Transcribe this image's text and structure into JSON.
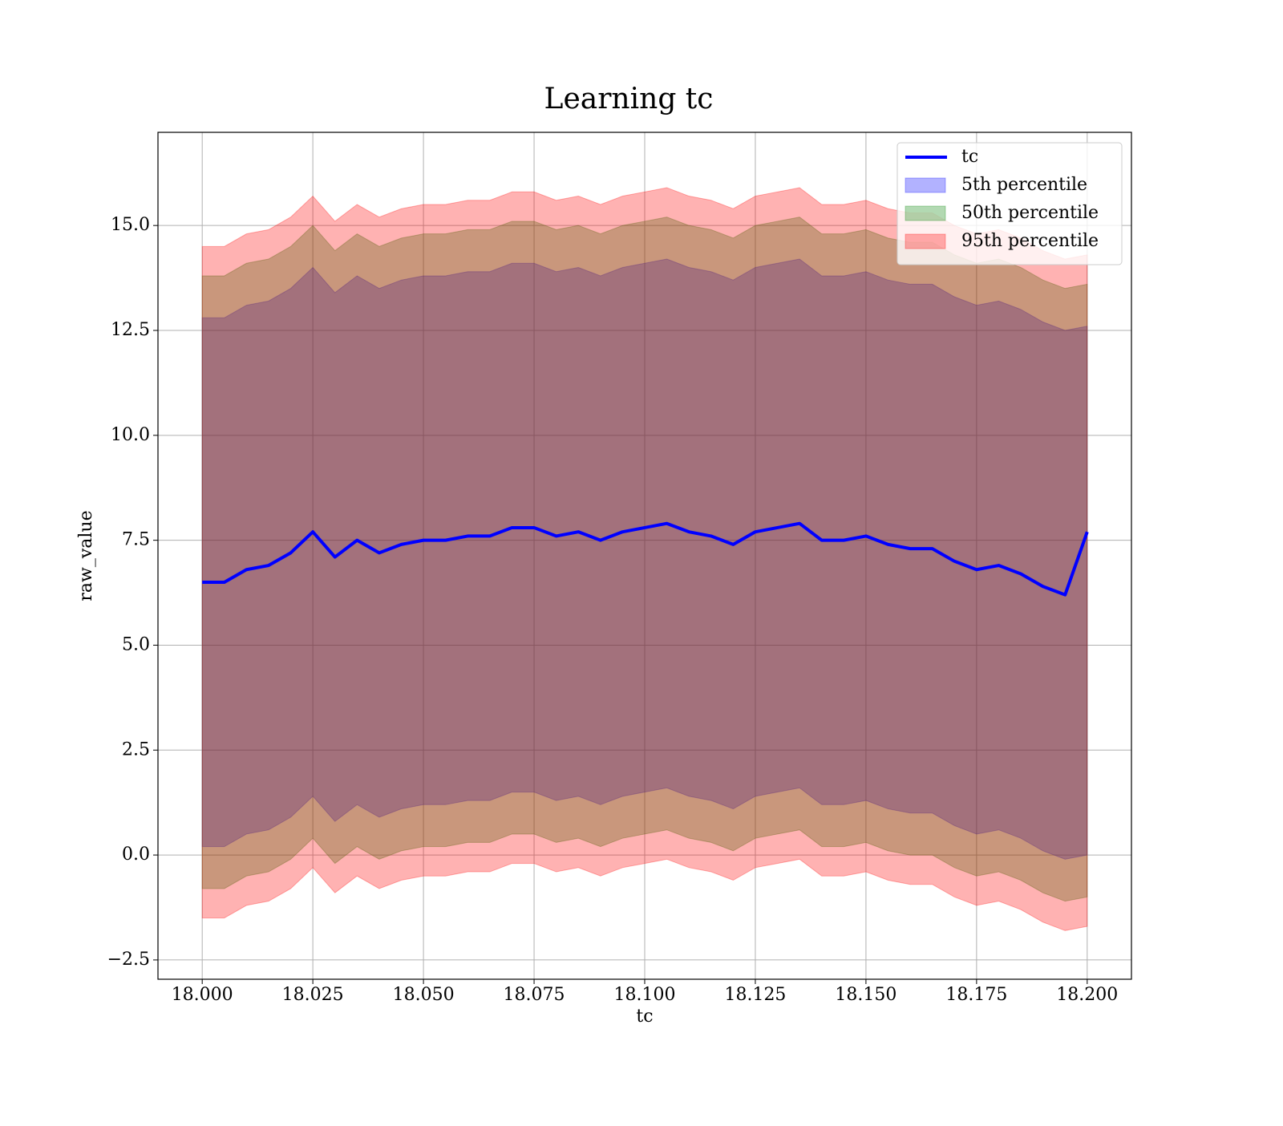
{
  "chart_data": {
    "type": "line",
    "title": "Learning tc",
    "xlabel": "tc",
    "ylabel": "raw_value",
    "x": [
      18.0,
      18.005,
      18.01,
      18.015,
      18.02,
      18.025,
      18.03,
      18.035,
      18.04,
      18.045,
      18.05,
      18.055,
      18.06,
      18.065,
      18.07,
      18.075,
      18.08,
      18.085,
      18.09,
      18.095,
      18.1,
      18.105,
      18.11,
      18.115,
      18.12,
      18.125,
      18.13,
      18.135,
      18.14,
      18.145,
      18.15,
      18.155,
      18.16,
      18.165,
      18.17,
      18.175,
      18.18,
      18.185,
      18.19,
      18.195,
      18.2
    ],
    "series": [
      {
        "name": "tc",
        "color": "#0000ff",
        "values": [
          6.5,
          6.5,
          6.8,
          6.9,
          7.2,
          7.7,
          7.1,
          7.5,
          7.2,
          7.4,
          7.5,
          7.5,
          7.6,
          7.6,
          7.8,
          7.8,
          7.6,
          7.7,
          7.5,
          7.7,
          7.8,
          7.9,
          7.7,
          7.6,
          7.4,
          7.7,
          7.8,
          7.9,
          7.5,
          7.5,
          7.6,
          7.4,
          7.3,
          7.3,
          7.0,
          6.8,
          6.9,
          6.7,
          6.4,
          6.2,
          7.7
        ]
      }
    ],
    "bands": [
      {
        "name": "5th percentile",
        "color": "#0000ff",
        "alpha": 0.3,
        "lower": [
          0.2,
          0.2,
          0.5,
          0.6,
          0.9,
          1.4,
          0.8,
          1.2,
          0.9,
          1.1,
          1.2,
          1.2,
          1.3,
          1.3,
          1.5,
          1.5,
          1.3,
          1.4,
          1.2,
          1.4,
          1.5,
          1.6,
          1.4,
          1.3,
          1.1,
          1.4,
          1.5,
          1.6,
          1.2,
          1.2,
          1.3,
          1.1,
          1.0,
          1.0,
          0.7,
          0.5,
          0.6,
          0.4,
          0.1,
          -0.1,
          0.0
        ],
        "upper": [
          12.8,
          12.8,
          13.1,
          13.2,
          13.5,
          14.0,
          13.4,
          13.8,
          13.5,
          13.7,
          13.8,
          13.8,
          13.9,
          13.9,
          14.1,
          14.1,
          13.9,
          14.0,
          13.8,
          14.0,
          14.1,
          14.2,
          14.0,
          13.9,
          13.7,
          14.0,
          14.1,
          14.2,
          13.8,
          13.8,
          13.9,
          13.7,
          13.6,
          13.6,
          13.3,
          13.1,
          13.2,
          13.0,
          12.7,
          12.5,
          12.6
        ]
      },
      {
        "name": "50th percentile",
        "color": "#008000",
        "alpha": 0.3,
        "lower": [
          -0.8,
          -0.8,
          -0.5,
          -0.4,
          -0.1,
          0.4,
          -0.2,
          0.2,
          -0.1,
          0.1,
          0.2,
          0.2,
          0.3,
          0.3,
          0.5,
          0.5,
          0.3,
          0.4,
          0.2,
          0.4,
          0.5,
          0.6,
          0.4,
          0.3,
          0.1,
          0.4,
          0.5,
          0.6,
          0.2,
          0.2,
          0.3,
          0.1,
          0.0,
          0.0,
          -0.3,
          -0.5,
          -0.4,
          -0.6,
          -0.9,
          -1.1,
          -1.0
        ],
        "upper": [
          13.8,
          13.8,
          14.1,
          14.2,
          14.5,
          15.0,
          14.4,
          14.8,
          14.5,
          14.7,
          14.8,
          14.8,
          14.9,
          14.9,
          15.1,
          15.1,
          14.9,
          15.0,
          14.8,
          15.0,
          15.1,
          15.2,
          15.0,
          14.9,
          14.7,
          15.0,
          15.1,
          15.2,
          14.8,
          14.8,
          14.9,
          14.7,
          14.6,
          14.6,
          14.3,
          14.1,
          14.2,
          14.0,
          13.7,
          13.5,
          13.6
        ]
      },
      {
        "name": "95th percentile",
        "color": "#ff0000",
        "alpha": 0.3,
        "lower": [
          -1.5,
          -1.5,
          -1.2,
          -1.1,
          -0.8,
          -0.3,
          -0.9,
          -0.5,
          -0.8,
          -0.6,
          -0.5,
          -0.5,
          -0.4,
          -0.4,
          -0.2,
          -0.2,
          -0.4,
          -0.3,
          -0.5,
          -0.3,
          -0.2,
          -0.1,
          -0.3,
          -0.4,
          -0.6,
          -0.3,
          -0.2,
          -0.1,
          -0.5,
          -0.5,
          -0.4,
          -0.6,
          -0.7,
          -0.7,
          -1.0,
          -1.2,
          -1.1,
          -1.3,
          -1.6,
          -1.8,
          -1.7
        ],
        "upper": [
          14.5,
          14.5,
          14.8,
          14.9,
          15.2,
          15.7,
          15.1,
          15.5,
          15.2,
          15.4,
          15.5,
          15.5,
          15.6,
          15.6,
          15.8,
          15.8,
          15.6,
          15.7,
          15.5,
          15.7,
          15.8,
          15.9,
          15.7,
          15.6,
          15.4,
          15.7,
          15.8,
          15.9,
          15.5,
          15.5,
          15.6,
          15.4,
          15.3,
          15.3,
          15.0,
          14.8,
          14.9,
          14.7,
          14.4,
          14.2,
          14.3
        ]
      }
    ],
    "xlim": [
      17.99,
      18.21
    ],
    "ylim": [
      -2.96,
      17.22
    ],
    "xticks": [
      {
        "value": 18.0,
        "label": "18.000"
      },
      {
        "value": 18.025,
        "label": "18.025"
      },
      {
        "value": 18.05,
        "label": "18.050"
      },
      {
        "value": 18.075,
        "label": "18.075"
      },
      {
        "value": 18.1,
        "label": "18.100"
      },
      {
        "value": 18.125,
        "label": "18.125"
      },
      {
        "value": 18.15,
        "label": "18.150"
      },
      {
        "value": 18.175,
        "label": "18.175"
      },
      {
        "value": 18.2,
        "label": "18.200"
      }
    ],
    "yticks": [
      {
        "value": -2.5,
        "label": "−2.5"
      },
      {
        "value": 0,
        "label": "0.0"
      },
      {
        "value": 2.5,
        "label": "2.5"
      },
      {
        "value": 5,
        "label": "5.0"
      },
      {
        "value": 7.5,
        "label": "7.5"
      },
      {
        "value": 10,
        "label": "10.0"
      },
      {
        "value": 12.5,
        "label": "12.5"
      },
      {
        "value": 15,
        "label": "15.0"
      }
    ],
    "grid": true,
    "legend": "upper right"
  }
}
